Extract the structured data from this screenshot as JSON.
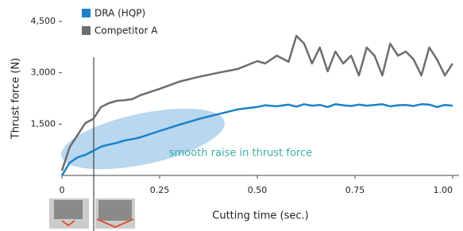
{
  "chart_data": {
    "type": "line",
    "x_label": "Cutting time (sec.)",
    "y_label": "Thrust force (N)",
    "annotation": "smooth raise in thrust force",
    "x": [
      0,
      0.02,
      0.04,
      0.06,
      0.08,
      0.1,
      0.12,
      0.14,
      0.16,
      0.18,
      0.2,
      0.25,
      0.3,
      0.35,
      0.4,
      0.45,
      0.5,
      0.52,
      0.55,
      0.58,
      0.6,
      0.62,
      0.64,
      0.66,
      0.68,
      0.7,
      0.72,
      0.74,
      0.76,
      0.78,
      0.8,
      0.82,
      0.84,
      0.86,
      0.88,
      0.9,
      0.92,
      0.94,
      0.96,
      0.98,
      1.0
    ],
    "series": [
      {
        "name": "DRA (HQP)",
        "color": "#1a82c8",
        "values": [
          0,
          370,
          530,
          600,
          720,
          840,
          900,
          950,
          1020,
          1060,
          1110,
          1300,
          1480,
          1650,
          1790,
          1930,
          2000,
          2050,
          2020,
          2070,
          2010,
          2080,
          2040,
          2060,
          2000,
          2080,
          2050,
          2030,
          2070,
          2040,
          2060,
          2080,
          2020,
          2050,
          2060,
          2030,
          2080,
          2070,
          2000,
          2060,
          2040
        ]
      },
      {
        "name": "Competitor A",
        "color": "#6d6d6d",
        "values": [
          140,
          830,
          1180,
          1530,
          1650,
          2000,
          2110,
          2180,
          2200,
          2230,
          2340,
          2530,
          2740,
          2880,
          3000,
          3110,
          3340,
          3270,
          3500,
          3320,
          4080,
          3850,
          3270,
          3740,
          3040,
          3620,
          3270,
          3500,
          2920,
          3740,
          3500,
          2920,
          3850,
          3500,
          3620,
          3390,
          2920,
          3740,
          3390,
          2920,
          3270
        ]
      }
    ],
    "xlim": [
      0,
      1.0
    ],
    "ylim": [
      0,
      4500
    ],
    "xticks": [
      0,
      0.25,
      {
        "value": 0.5,
        "label": "0.50"
      },
      0.75,
      {
        "value": 1.0,
        "label": "1.00"
      }
    ],
    "yticks": [
      {
        "value": 1500,
        "label": "1,500"
      },
      {
        "value": 3000,
        "label": "3,000"
      },
      {
        "value": 4500,
        "label": "4,500"
      }
    ],
    "grid": false
  }
}
